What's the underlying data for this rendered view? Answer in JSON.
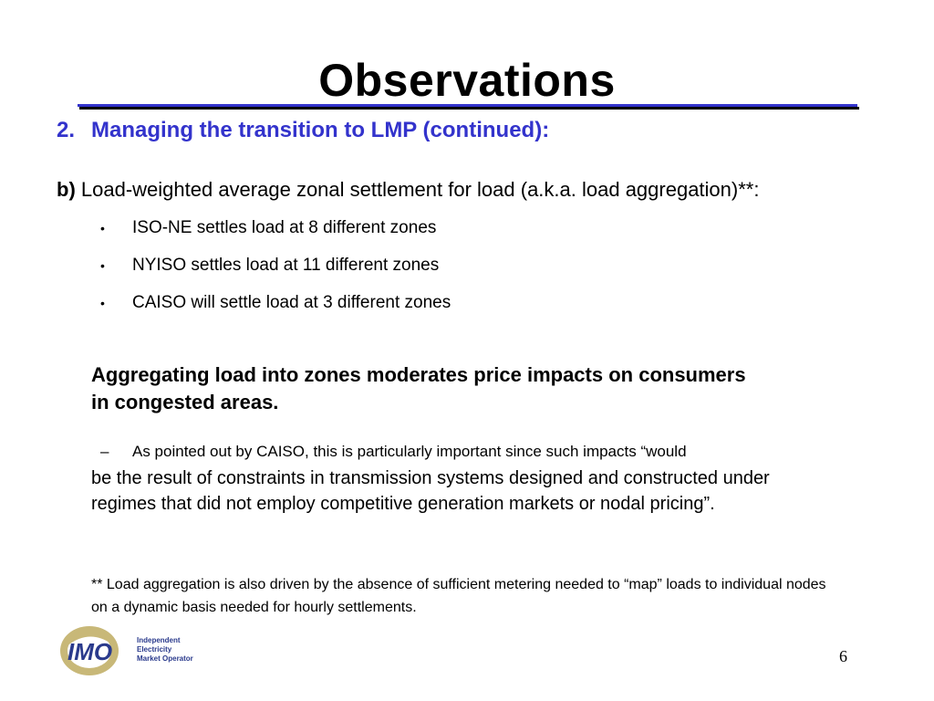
{
  "slide": {
    "title": "Observations",
    "subtitle_number": "2.",
    "subtitle_text": "Managing the transition to LMP (continued):",
    "point_b_label": "b)",
    "point_b_text": " Load-weighted average zonal settlement for load (a.k.a. load aggregation)**:",
    "bullets": [
      "ISO-NE settles load at 8 different zones",
      "NYISO settles load at 11 different zones",
      "CAISO will settle load at 3 different zones"
    ],
    "bullet_glyph": "•",
    "emphasis": "Aggregating load into zones moderates price impacts on consumers in congested areas.",
    "dash_glyph": "–",
    "dash_item": "As pointed out by CAISO, this is particularly important since such impacts “would",
    "quote_continuation": "be the result of constraints in transmission systems designed and constructed under regimes that did not employ competitive generation markets or nodal pricing”.",
    "footnote": "** Load aggregation is also driven by the absence of sufficient metering needed to “map” loads to individual nodes on a dynamic basis needed for hourly settlements.",
    "page_number": "6"
  },
  "logo": {
    "mark": "IMO",
    "line1": "Independent",
    "line2": "Electricity",
    "line3": "Market Operator"
  },
  "colors": {
    "accent_blue": "#3333cc",
    "logo_gold": "#c8b878",
    "logo_navy": "#2a3a8c"
  }
}
